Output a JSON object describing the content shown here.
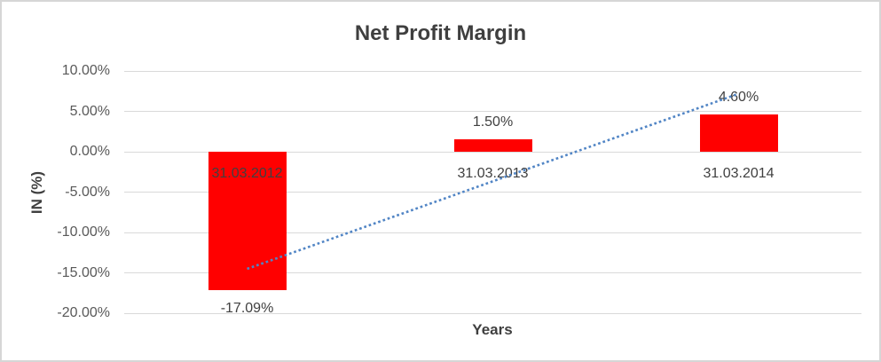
{
  "window": {
    "background": "#ffffff",
    "border_color": "#d6d6d6"
  },
  "chart_data": {
    "type": "bar",
    "title": "Net Profit Margin",
    "xlabel": "Years",
    "ylabel": "IN (%)",
    "categories": [
      "31.03.2012",
      "31.03.2013",
      "31.03.2014"
    ],
    "values": [
      -17.09,
      1.5,
      4.6
    ],
    "data_labels": [
      "-17.09%",
      "1.50%",
      "4.60%"
    ],
    "y_tick_values": [
      10,
      5,
      0,
      -5,
      -10,
      -15,
      -20
    ],
    "y_tick_labels": [
      "10.00%",
      "5.00%",
      "0.00%",
      "-5.00%",
      "-10.00%",
      "-15.00%",
      "-20.00%"
    ],
    "ylim": [
      -20,
      10
    ],
    "grid": true,
    "legend": "none",
    "bar_color": "#ff0000",
    "gridline_color": "#d9d9d9",
    "trendline": {
      "type": "linear",
      "style": "dotted",
      "color": "#5185c5"
    },
    "text_colors": {
      "title": "#3f3f3f",
      "ticks": "#595959",
      "labels": "#404040"
    }
  }
}
